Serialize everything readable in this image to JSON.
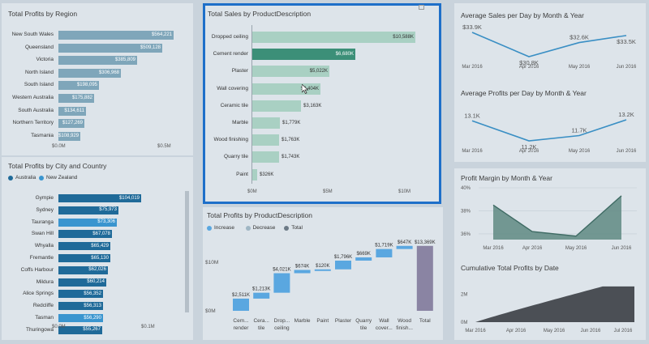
{
  "region": {
    "title": "Total Profits by Region",
    "xticks": [
      "$0.0M",
      "$0.5M"
    ],
    "bar_color": "#7fa6ba",
    "items": [
      {
        "label": "New South Wales",
        "value": "$564,221",
        "num": 564221
      },
      {
        "label": "Queensland",
        "value": "$509,128",
        "num": 509128
      },
      {
        "label": "Victoria",
        "value": "$385,809",
        "num": 385809
      },
      {
        "label": "North Island",
        "value": "$306,968",
        "num": 306968
      },
      {
        "label": "South Island",
        "value": "$198,095",
        "num": 198095
      },
      {
        "label": "Western Australia",
        "value": "$175,882",
        "num": 175882
      },
      {
        "label": "South Australia",
        "value": "$134,611",
        "num": 134611
      },
      {
        "label": "Northern Territory",
        "value": "$127,269",
        "num": 127269
      },
      {
        "label": "Tasmania",
        "value": "$108,929",
        "num": 108929
      }
    ]
  },
  "city": {
    "title": "Total Profits by City and Country",
    "legend": [
      {
        "label": "Australia",
        "color": "#1f6a99"
      },
      {
        "label": "New Zealand",
        "color": "#3a95cf"
      }
    ],
    "xticks": [
      "$0.0M",
      "$0.1M"
    ],
    "items": [
      {
        "label": "Gympie",
        "value": "$104,019",
        "num": 104019,
        "country": "Australia"
      },
      {
        "label": "Sydney",
        "value": "$75,973",
        "num": 75973,
        "country": "Australia"
      },
      {
        "label": "Tauranga",
        "value": "$73,306",
        "num": 73306,
        "country": "New Zealand"
      },
      {
        "label": "Swan Hill",
        "value": "$67,078",
        "num": 67078,
        "country": "Australia"
      },
      {
        "label": "Whyalla",
        "value": "$65,429",
        "num": 65429,
        "country": "Australia"
      },
      {
        "label": "Fremantle",
        "value": "$65,130",
        "num": 65130,
        "country": "Australia"
      },
      {
        "label": "Coffs Harbour",
        "value": "$62,026",
        "num": 62026,
        "country": "Australia"
      },
      {
        "label": "Mildura",
        "value": "$60,214",
        "num": 60214,
        "country": "Australia"
      },
      {
        "label": "Alice Springs",
        "value": "$56,352",
        "num": 56352,
        "country": "Australia"
      },
      {
        "label": "Redcliffe",
        "value": "$56,313",
        "num": 56313,
        "country": "Australia"
      },
      {
        "label": "Tasman",
        "value": "$56,290",
        "num": 56290,
        "country": "New Zealand"
      },
      {
        "label": "Thuringowa",
        "value": "$55,267",
        "num": 55267,
        "country": "Australia"
      }
    ]
  },
  "sales": {
    "title": "Total Sales by ProductDescription",
    "xticks": [
      "$0M",
      "$5M",
      "$10M"
    ],
    "bar_color": "#a9d0c3",
    "highlight_color": "#3c8f78",
    "border_color": "#1e6fc9",
    "items": [
      {
        "label": "Dropped ceiling",
        "value": "$10,588K",
        "num": 10588
      },
      {
        "label": "Cement render",
        "value": "$6,680K",
        "num": 6680,
        "highlight": true
      },
      {
        "label": "Plaster",
        "value": "$5,022K",
        "num": 5022
      },
      {
        "label": "Wall covering",
        "value": "$4,404K",
        "num": 4404
      },
      {
        "label": "Ceramic tile",
        "value": "$3,163K",
        "num": 3163
      },
      {
        "label": "Marble",
        "value": "$1,779K",
        "num": 1779
      },
      {
        "label": "Wood finishing",
        "value": "$1,763K",
        "num": 1763
      },
      {
        "label": "Quarry tile",
        "value": "$1,743K",
        "num": 1743
      },
      {
        "label": "Paint",
        "value": "$326K",
        "num": 326
      }
    ]
  },
  "waterfall": {
    "title": "Total Profits by ProductDescription",
    "legend": [
      {
        "label": "Increase",
        "color": "#5aa7e0"
      },
      {
        "label": "Decrease",
        "color": "#9fb6c4"
      },
      {
        "label": "Total",
        "color": "#6c7a86"
      }
    ],
    "yticks": [
      {
        "label": "$10M",
        "value": 10000
      },
      {
        "label": "$0M",
        "value": 0
      }
    ],
    "total_color": "#8a84a3",
    "items": [
      {
        "label1": "Cem...",
        "label2": "render",
        "value": "$2,511K",
        "num": 2511
      },
      {
        "label1": "Cera...",
        "label2": "tile",
        "value": "$1,213K",
        "num": 1213
      },
      {
        "label1": "Drop...",
        "label2": "ceiling",
        "value": "$4,021K",
        "num": 4021
      },
      {
        "label1": "Marble",
        "label2": "",
        "value": "$674K",
        "num": 674
      },
      {
        "label1": "Paint",
        "label2": "",
        "value": "$120K",
        "num": 120
      },
      {
        "label1": "Plaster",
        "label2": "",
        "value": "$1,796K",
        "num": 1796
      },
      {
        "label1": "Quarry",
        "label2": "tile",
        "value": "$669K",
        "num": 669
      },
      {
        "label1": "Wall",
        "label2": "cover...",
        "value": "$1,719K",
        "num": 1719
      },
      {
        "label1": "Wood",
        "label2": "finish...",
        "value": "$647K",
        "num": 647
      },
      {
        "label1": "Total",
        "label2": "",
        "value": "$13,369K",
        "num": 13369,
        "total": true
      }
    ]
  },
  "avg_sales": {
    "title": "Average Sales per Day by Month & Year",
    "x": [
      "Mar 2016",
      "Apr 2016",
      "May 2016",
      "Jun 2016"
    ],
    "values": [
      33.9,
      30.8,
      32.6,
      33.5
    ],
    "labels": [
      "$33.9K",
      "$30.8K",
      "$32.6K",
      "$33.5K"
    ],
    "line_color": "#3a8fc4"
  },
  "avg_profits": {
    "title": "Average Profits per Day by Month & Year",
    "x": [
      "Mar 2016",
      "Apr 2016",
      "May 2016",
      "Jun 2016"
    ],
    "values": [
      13.1,
      11.2,
      11.7,
      13.2
    ],
    "labels": [
      "13.1K",
      "11.2K",
      "11.7K",
      "13.2K"
    ],
    "line_color": "#3a8fc4"
  },
  "margin": {
    "title": "Profit Margin by Month & Year",
    "x": [
      "Mar 2016",
      "Apr 2016",
      "May 2016",
      "Jun 2016"
    ],
    "values": [
      38.5,
      36.2,
      35.8,
      39.3
    ],
    "yticks": [
      {
        "label": "40%",
        "value": 40
      },
      {
        "label": "38%",
        "value": 38
      },
      {
        "label": "36%",
        "value": 36
      }
    ],
    "fill_color": "#5f8a83"
  },
  "cumulative": {
    "title": "Cumulative Total Profits by Date",
    "x": [
      "Mar 2016",
      "Apr 2016",
      "May 2016",
      "Jun 2016",
      "Jul 2016"
    ],
    "yticks": [
      {
        "label": "2M",
        "value": 2
      },
      {
        "label": "0M",
        "value": 0
      }
    ],
    "fill_color": "#4b4f55"
  },
  "chart_data": [
    {
      "type": "bar",
      "title": "Total Profits by Region",
      "categories": [
        "New South Wales",
        "Queensland",
        "Victoria",
        "North Island",
        "South Island",
        "Western Australia",
        "South Australia",
        "Northern Territory",
        "Tasmania"
      ],
      "values": [
        564221,
        509128,
        385809,
        306968,
        198095,
        175882,
        134611,
        127269,
        108929
      ]
    },
    {
      "type": "bar",
      "title": "Total Profits by City and Country",
      "categories": [
        "Gympie",
        "Sydney",
        "Tauranga",
        "Swan Hill",
        "Whyalla",
        "Fremantle",
        "Coffs Harbour",
        "Mildura",
        "Alice Springs",
        "Redcliffe",
        "Tasman",
        "Thuringowa"
      ],
      "values": [
        104019,
        75973,
        73306,
        67078,
        65429,
        65130,
        62026,
        60214,
        56352,
        56313,
        56290,
        55267
      ]
    },
    {
      "type": "bar",
      "title": "Total Sales by ProductDescription",
      "categories": [
        "Dropped ceiling",
        "Cement render",
        "Plaster",
        "Wall covering",
        "Ceramic tile",
        "Marble",
        "Wood finishing",
        "Quarry tile",
        "Paint"
      ],
      "values": [
        10588,
        6680,
        5022,
        4404,
        3163,
        1779,
        1763,
        1743,
        326
      ]
    },
    {
      "type": "bar",
      "title": "Total Profits by ProductDescription",
      "categories": [
        "Cement render",
        "Ceramic tile",
        "Dropped ceiling",
        "Marble",
        "Paint",
        "Plaster",
        "Quarry tile",
        "Wall covering",
        "Wood finishing",
        "Total"
      ],
      "values": [
        2511,
        1213,
        4021,
        674,
        120,
        1796,
        669,
        1719,
        647,
        13369
      ]
    },
    {
      "type": "line",
      "title": "Average Sales per Day by Month & Year",
      "x": [
        "Mar 2016",
        "Apr 2016",
        "May 2016",
        "Jun 2016"
      ],
      "values": [
        33.9,
        30.8,
        32.6,
        33.5
      ]
    },
    {
      "type": "line",
      "title": "Average Profits per Day by Month & Year",
      "x": [
        "Mar 2016",
        "Apr 2016",
        "May 2016",
        "Jun 2016"
      ],
      "values": [
        13.1,
        11.2,
        11.7,
        13.2
      ]
    },
    {
      "type": "area",
      "title": "Profit Margin by Month & Year",
      "x": [
        "Mar 2016",
        "Apr 2016",
        "May 2016",
        "Jun 2016"
      ],
      "values": [
        38.5,
        36.2,
        35.8,
        39.3
      ]
    }
  ]
}
